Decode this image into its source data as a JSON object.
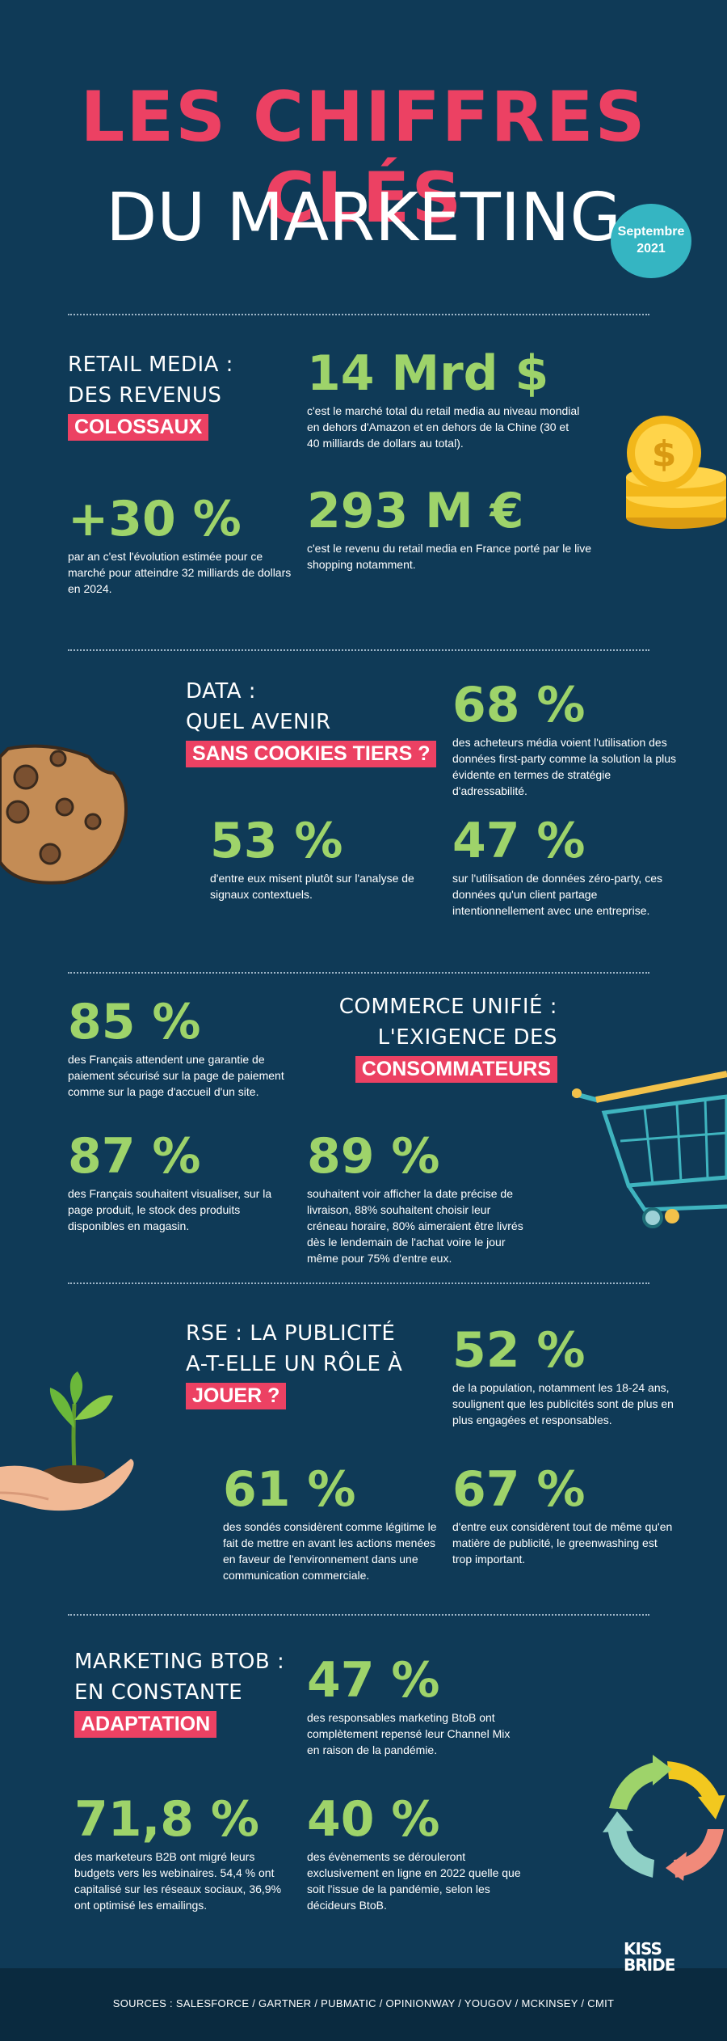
{
  "header": {
    "title_line1": "LES CHIFFRES CLÉS",
    "title_line2": "DU MARKETING",
    "badge_month": "Septembre",
    "badge_year": "2021"
  },
  "sections": {
    "retail": {
      "head1": "RETAIL MEDIA :",
      "head2": "DES REVENUS",
      "highlight": "COLOSSAUX",
      "stat1_value": "14 Mrd $",
      "stat1_desc": "c'est le marché total du retail media au niveau mondial en dehors d'Amazon et en dehors de la Chine (30 et 40 milliards de dollars au total).",
      "stat2_value": "+30 %",
      "stat2_desc": "par an c'est l'évolution estimée pour ce marché pour atteindre 32 milliards de dollars en 2024.",
      "stat3_value": "293 M €",
      "stat3_desc": "c'est le revenu du retail media en France porté par le live shopping notamment."
    },
    "data": {
      "head1": "DATA :",
      "head2": "QUEL AVENIR",
      "highlight": "SANS COOKIES TIERS ?",
      "stat1_value": "68 %",
      "stat1_desc": "des acheteurs média voient l'utilisation des données first-party comme la solution la plus évidente en termes de stratégie d'adressabilité.",
      "stat2_value": "53 %",
      "stat2_desc": "d'entre eux misent plutôt sur l'analyse de signaux contextuels.",
      "stat3_value": "47 %",
      "stat3_desc": "sur l'utilisation de données zéro-party, ces données qu'un client partage intentionnellement avec une entreprise."
    },
    "commerce": {
      "head1": "COMMERCE UNIFIÉ :",
      "head2": "L'EXIGENCE DES",
      "highlight": "CONSOMMATEURS",
      "stat1_value": "85 %",
      "stat1_desc": "des Français attendent une garantie de paiement sécurisé sur la page de paiement comme sur la page d'accueil d'un site.",
      "stat2_value": "87 %",
      "stat2_desc": "des Français souhaitent visualiser, sur la page produit, le stock des produits disponibles en magasin.",
      "stat3_value": "89 %",
      "stat3_desc": "souhaitent voir afficher la date précise de livraison, 88% souhaitent choisir leur créneau horaire, 80% aimeraient être livrés dès le lendemain de l'achat voire le jour même pour 75% d'entre eux."
    },
    "rse": {
      "head1": "RSE : LA PUBLICITÉ",
      "head2": "A-T-ELLE UN RÔLE À",
      "highlight": "JOUER ?",
      "stat1_value": "52 %",
      "stat1_desc": "de la population, notamment les 18-24 ans, soulignent que les publicités sont de plus en plus engagées et responsables.",
      "stat2_value": "61 %",
      "stat2_desc": "des sondés considèrent comme légitime le fait de mettre en avant les actions menées en faveur de l'environnement dans une communication commerciale.",
      "stat3_value": "67 %",
      "stat3_desc": "d'entre eux considèrent tout de même qu'en matière de publicité, le greenwashing est trop important."
    },
    "btob": {
      "head1": "MARKETING BTOB :",
      "head2": "EN CONSTANTE",
      "highlight": "ADAPTATION",
      "stat1_value": "47 %",
      "stat1_desc": "des responsables marketing BtoB ont complètement repensé leur Channel Mix en raison de la pandémie.",
      "stat2_value": "71,8 %",
      "stat2_desc": "des marketeurs B2B ont migré leurs budgets vers les webinaires. 54,4 % ont capitalisé sur les réseaux sociaux, 36,9% ont optimisé les emailings.",
      "stat3_value": "40 %",
      "stat3_desc": "des évènements se dérouleront exclusivement en ligne en 2022 quelle que soit l'issue de la pandémie, selon les décideurs BtoB."
    }
  },
  "footer": {
    "sources": "SOURCES : SALESFORCE / GARTNER / PUBMATIC / OPINIONWAY / YOUGOV / MCKINSEY / CMIT",
    "logo_line1": "KISS",
    "logo_line2": "BRIDE"
  },
  "colors": {
    "background": "#0f3a57",
    "accent_pink": "#ec4163",
    "accent_green": "#9ed36a",
    "badge_teal": "#35b5c2"
  },
  "icons": [
    "coins-icon",
    "cookie-icon",
    "shopping-cart-icon",
    "plant-in-hand-icon",
    "recycle-arrows-icon"
  ]
}
